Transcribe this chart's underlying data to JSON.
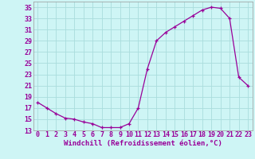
{
  "x": [
    0,
    1,
    2,
    3,
    4,
    5,
    6,
    7,
    8,
    9,
    10,
    11,
    12,
    13,
    14,
    15,
    16,
    17,
    18,
    19,
    20,
    21,
    22,
    23
  ],
  "y": [
    18,
    17,
    16,
    15.2,
    15,
    14.5,
    14.2,
    13.5,
    13.5,
    13.5,
    14.2,
    17,
    24,
    29,
    30.5,
    31.5,
    32.5,
    33.5,
    34.5,
    35,
    34.8,
    33,
    22.5,
    21
  ],
  "line_color": "#990099",
  "marker": "+",
  "background_color": "#cef5f5",
  "grid_color": "#aadddd",
  "xlabel": "Windchill (Refroidissement éolien,°C)",
  "ylim": [
    13,
    36
  ],
  "xlim": [
    -0.5,
    23.5
  ],
  "yticks": [
    13,
    15,
    17,
    19,
    21,
    23,
    25,
    27,
    29,
    31,
    33,
    35
  ],
  "xticks": [
    0,
    1,
    2,
    3,
    4,
    5,
    6,
    7,
    8,
    9,
    10,
    11,
    12,
    13,
    14,
    15,
    16,
    17,
    18,
    19,
    20,
    21,
    22,
    23
  ],
  "xlabel_fontsize": 6.5,
  "tick_fontsize": 6.0
}
